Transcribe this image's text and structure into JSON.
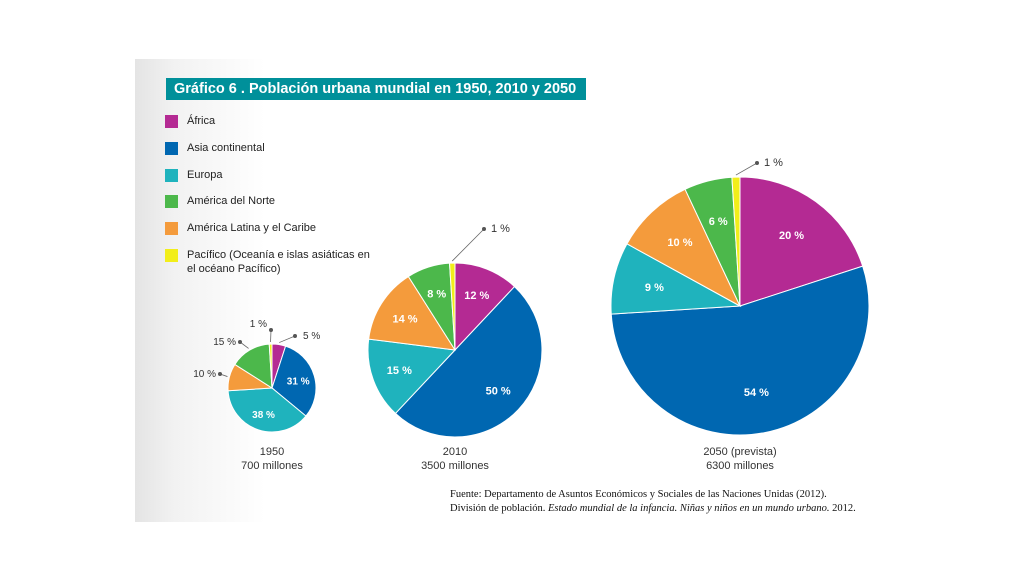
{
  "title": "Gráfico 6 . Población urbana mundial en 1950, 2010 y 2050",
  "legend": [
    {
      "name": "África",
      "color": "#b42a93"
    },
    {
      "name": "Asia continental",
      "color": "#0067b1"
    },
    {
      "name": "Europa",
      "color": "#1fb3bd"
    },
    {
      "name": "América del Norte",
      "color": "#4cb84b"
    },
    {
      "name": "América Latina y el Caribe",
      "color": "#f49b3c"
    },
    {
      "name": "Pacífico (Oceanía e islas asiáticas en el océano Pacífico)",
      "color": "#f2ee1a"
    }
  ],
  "chart_data": {
    "type": "pie",
    "categories": [
      "África",
      "Asia continental",
      "Europa",
      "América del Norte",
      "América Latina y el Caribe",
      "Pacífico (Oceanía e islas asiáticas en el océano Pacífico)"
    ],
    "pies": [
      {
        "year": "1950",
        "caption": "700 millones",
        "values": [
          5,
          31,
          38,
          15,
          10,
          1
        ],
        "labels": [
          "5 %",
          "31 %",
          "38 %",
          "15 %",
          "10 %",
          "1 %"
        ]
      },
      {
        "year": "2010",
        "caption": "3500 millones",
        "values": [
          12,
          50,
          15,
          8,
          14,
          1
        ],
        "labels": [
          "12 %",
          "50 %",
          "15 %",
          "8 %",
          "14 %",
          "1 %"
        ]
      },
      {
        "year": "2050 (prevista)",
        "caption": "6300 millones",
        "values": [
          20,
          54,
          9,
          6,
          10,
          1
        ],
        "labels": [
          "20 %",
          "54 %",
          "9 %",
          "6 %",
          "10 %",
          "1 %"
        ]
      }
    ]
  },
  "source": {
    "line1": "Fuente: Departamento de Asuntos Económicos y Sociales de las Naciones Unidas (2012).",
    "line2_prefix": "División de población. ",
    "line2_italic": "Estado mundial de la infancia. Niñas y niños en un mundo urbano.",
    "line2_suffix": " 2012."
  }
}
